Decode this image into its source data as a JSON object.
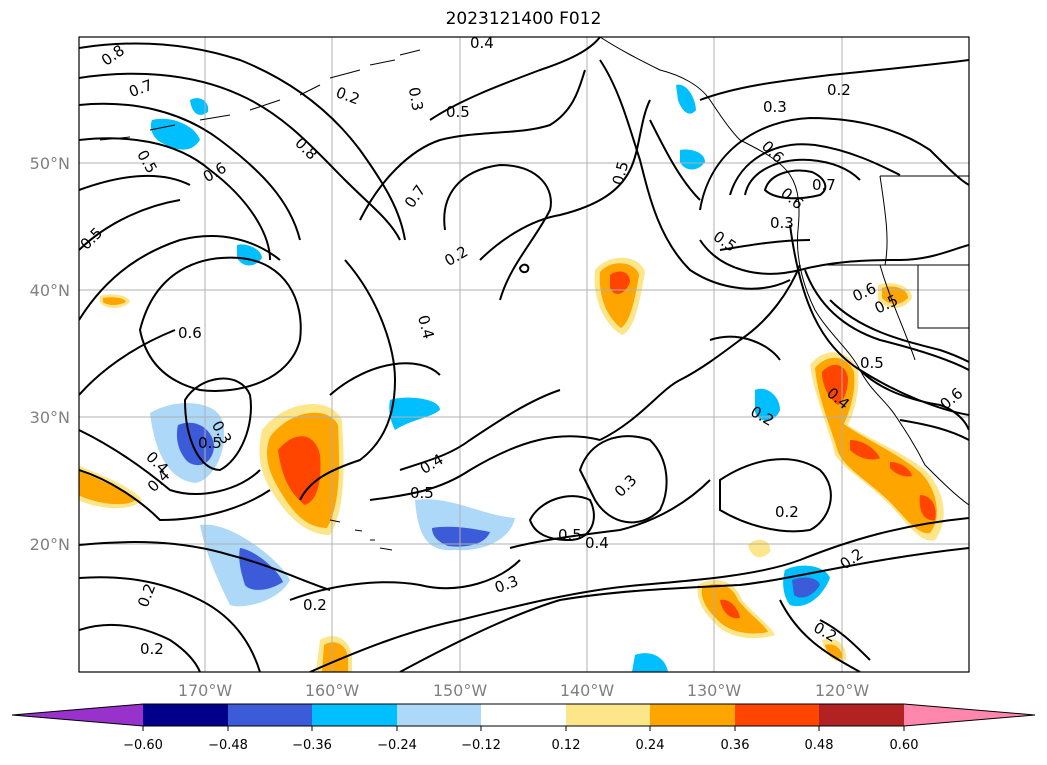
{
  "title": "2023121400 F012",
  "lat_labels": [
    "50°N",
    "40°N",
    "30°N",
    "20°N"
  ],
  "lon_labels": [
    "170°W",
    "160°W",
    "150°W",
    "140°W",
    "130°W",
    "120°W"
  ],
  "contour_labels": [
    "0.8",
    "0.7",
    "0.6",
    "0.5",
    "0.5",
    "0.2",
    "0.3",
    "0.4",
    "0.5",
    "0.7",
    "0.8",
    "0.6",
    "0.2",
    "0.4",
    "0.4",
    "0.5",
    "0.3",
    "0.5",
    "0.4",
    "0.3",
    "0.3",
    "0.2",
    "0.4",
    "0.5",
    "0.6",
    "0.5",
    "0.2",
    "0.3",
    "0.2",
    "0.2",
    "0.2",
    "0.2",
    "0.4",
    "0.5",
    "0.6",
    "0.7",
    "0.6",
    "0.6",
    "0.4",
    "0.2",
    "0.5",
    "0.2",
    "0.3",
    "0.5"
  ],
  "colorbar": {
    "ticks": [
      "−0.60",
      "−0.48",
      "−0.36",
      "−0.24",
      "−0.12",
      "0.12",
      "0.24",
      "0.36",
      "0.48",
      "0.60"
    ],
    "colors": [
      "#9932cc",
      "#00008b",
      "#3b5bd8",
      "#00bfff",
      "#add8f7",
      "#ffffff",
      "#fde68a",
      "#ffa500",
      "#ff4500",
      "#b22222",
      "#ff86ad"
    ]
  },
  "shade_colors": {
    "neg_light": "#add8f7",
    "neg_mid": "#00bfff",
    "neg_dark": "#3b5bd8",
    "pos_light": "#fde68a",
    "pos_mid": "#ffa500",
    "pos_dark": "#ff4500"
  }
}
